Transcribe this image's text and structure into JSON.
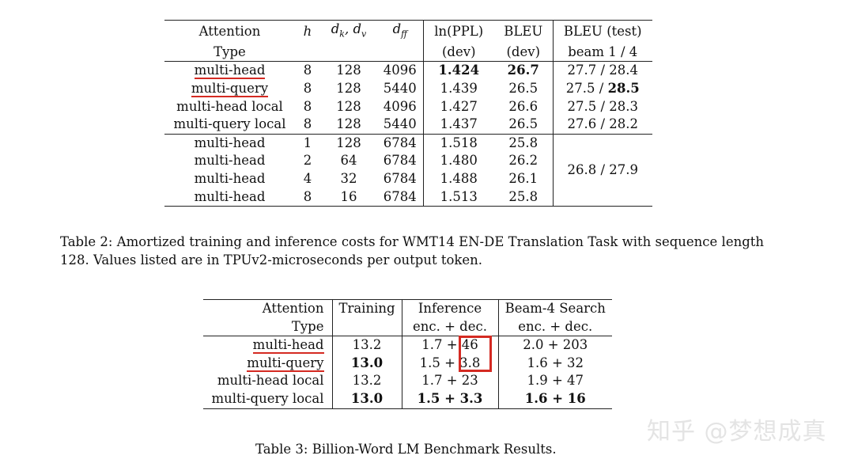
{
  "table1": {
    "headers": {
      "attention_l1": "Attention",
      "attention_l2": "Type",
      "h": "h",
      "dkdv": "d",
      "dkdv_sub1": "k",
      "dkdv_sep": ", d",
      "dkdv_sub2": "v",
      "dff": "d",
      "dff_sub": "ff",
      "ppl_l1": "ln(PPL)",
      "ppl_l2": "(dev)",
      "bleu_l1": "BLEU",
      "bleu_l2": "(dev)",
      "bleut_l1": "BLEU (test)",
      "bleut_l2": "beam 1 / 4"
    },
    "rows": [
      {
        "type": "multi-head",
        "h": "8",
        "dk": "128",
        "dff": "4096",
        "ppl": "1.424",
        "bleu": "26.7",
        "test_a": "27.7",
        "test_b": "28.4"
      },
      {
        "type": "multi-query",
        "h": "8",
        "dk": "128",
        "dff": "5440",
        "ppl": "1.439",
        "bleu": "26.5",
        "test_a": "27.5",
        "test_b": "28.5"
      },
      {
        "type": "multi-head local",
        "h": "8",
        "dk": "128",
        "dff": "4096",
        "ppl": "1.427",
        "bleu": "26.6",
        "test_a": "27.5",
        "test_b": "28.3"
      },
      {
        "type": "multi-query local",
        "h": "8",
        "dk": "128",
        "dff": "5440",
        "ppl": "1.437",
        "bleu": "26.5",
        "test_a": "27.6",
        "test_b": "28.2"
      },
      {
        "type": "multi-head",
        "h": "1",
        "dk": "128",
        "dff": "6784",
        "ppl": "1.518",
        "bleu": "25.8"
      },
      {
        "type": "multi-head",
        "h": "2",
        "dk": "64",
        "dff": "6784",
        "ppl": "1.480",
        "bleu": "26.2",
        "test_merged": "26.8 / 27.9"
      },
      {
        "type": "multi-head",
        "h": "4",
        "dk": "32",
        "dff": "6784",
        "ppl": "1.488",
        "bleu": "26.1"
      },
      {
        "type": "multi-head",
        "h": "8",
        "dk": "16",
        "dff": "6784",
        "ppl": "1.513",
        "bleu": "25.8"
      }
    ],
    "slash": " / "
  },
  "caption2": "Table 2: Amortized training and inference costs for WMT14 EN-DE Translation Task with sequence length 128. Values listed are in TPUv2-microseconds per output token.",
  "table2": {
    "headers": {
      "attention_l1": "Attention",
      "attention_l2": "Type",
      "training": "Training",
      "inference_l1": "Inference",
      "inference_l2": "enc. + dec.",
      "beam_l1": "Beam-4 Search",
      "beam_l2": "enc. + dec."
    },
    "rows": [
      {
        "type": "multi-head",
        "training": "13.2",
        "inf_enc": "1.7",
        "inf_dec": "46",
        "beam_enc": "2.0",
        "beam_dec": "203"
      },
      {
        "type": "multi-query",
        "training": "13.0",
        "inf_enc": "1.5",
        "inf_dec": "3.8",
        "beam_enc": "1.6",
        "beam_dec": "32"
      },
      {
        "type": "multi-head local",
        "training": "13.2",
        "inf_enc": "1.7",
        "inf_dec": "23",
        "beam_enc": "1.9",
        "beam_dec": "47"
      },
      {
        "type": "multi-query local",
        "training": "13.0",
        "inf_enc": "1.5",
        "inf_dec": "3.3",
        "beam_enc": "1.6",
        "beam_dec": "16"
      }
    ],
    "plus": " + "
  },
  "caption3": "Table 3: Billion-Word LM Benchmark Results.",
  "watermark": "知乎 @梦想成真",
  "colors": {
    "annotation_red": "#d42a22"
  }
}
